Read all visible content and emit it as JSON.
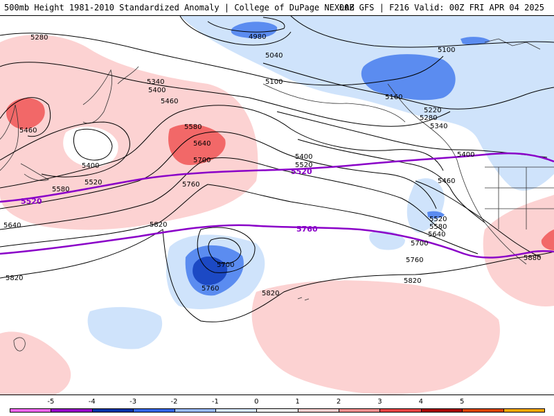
{
  "header": {
    "left": "500mb Height 1981-2010 Standardized Anomaly | College of DuPage NEXLAB",
    "right": "00Z GFS | F216 Valid: 00Z FRI APR 04 2025"
  },
  "contour_labels": {
    "c5280": "5280",
    "c5460a": "5460",
    "c5400a": "5400",
    "c5520a": "5520",
    "c5580a": "5580",
    "c5640a": "5640",
    "c5820a": "5820",
    "c5340": "5340",
    "c5400b": "5400",
    "c5460b": "5460",
    "c5580b": "5580",
    "c5640b": "5640",
    "c5700a": "5700",
    "c5760a": "5760",
    "c5820b": "5820",
    "c5700b": "5700",
    "c5760b": "5760",
    "c5820c": "5820",
    "c4980": "4980",
    "c5040": "5040",
    "c5100a": "5100",
    "c5100b": "5100",
    "c5160": "5160",
    "c5220": "5220",
    "c5280b": "5280",
    "c5340b": "5340",
    "c5400c": "5400",
    "c5520b": "5520",
    "c5460c": "5460",
    "c5520c": "5520",
    "c5580c": "5580",
    "c5640c": "5640",
    "c5700c": "5700",
    "c5760c": "5760",
    "c5820d": "5820",
    "c5880": "5880"
  },
  "highlight_labels": {
    "p5520a": "5520",
    "p5520b": "5520",
    "p5760": "5760"
  },
  "colorbar": {
    "ticks": [
      "-5",
      "-4",
      "-3",
      "-2",
      "-1",
      "0",
      "1",
      "2",
      "3",
      "4",
      "5"
    ],
    "colors": [
      "#ff66ff",
      "#9900cc",
      "#0033aa",
      "#3366ee",
      "#99bbff",
      "#d6e8ff",
      "#ffffff",
      "#ffd0d0",
      "#ff9090",
      "#ee4444",
      "#aa0000",
      "#dd4400",
      "#ffaa00"
    ]
  },
  "colors": {
    "warm1": "#fcd2d2",
    "warm2": "#f26868",
    "cool1": "#cfe3fb",
    "cool2": "#5b8cf0",
    "cool3": "#1c49c4",
    "highlight": "#8a00c8"
  }
}
